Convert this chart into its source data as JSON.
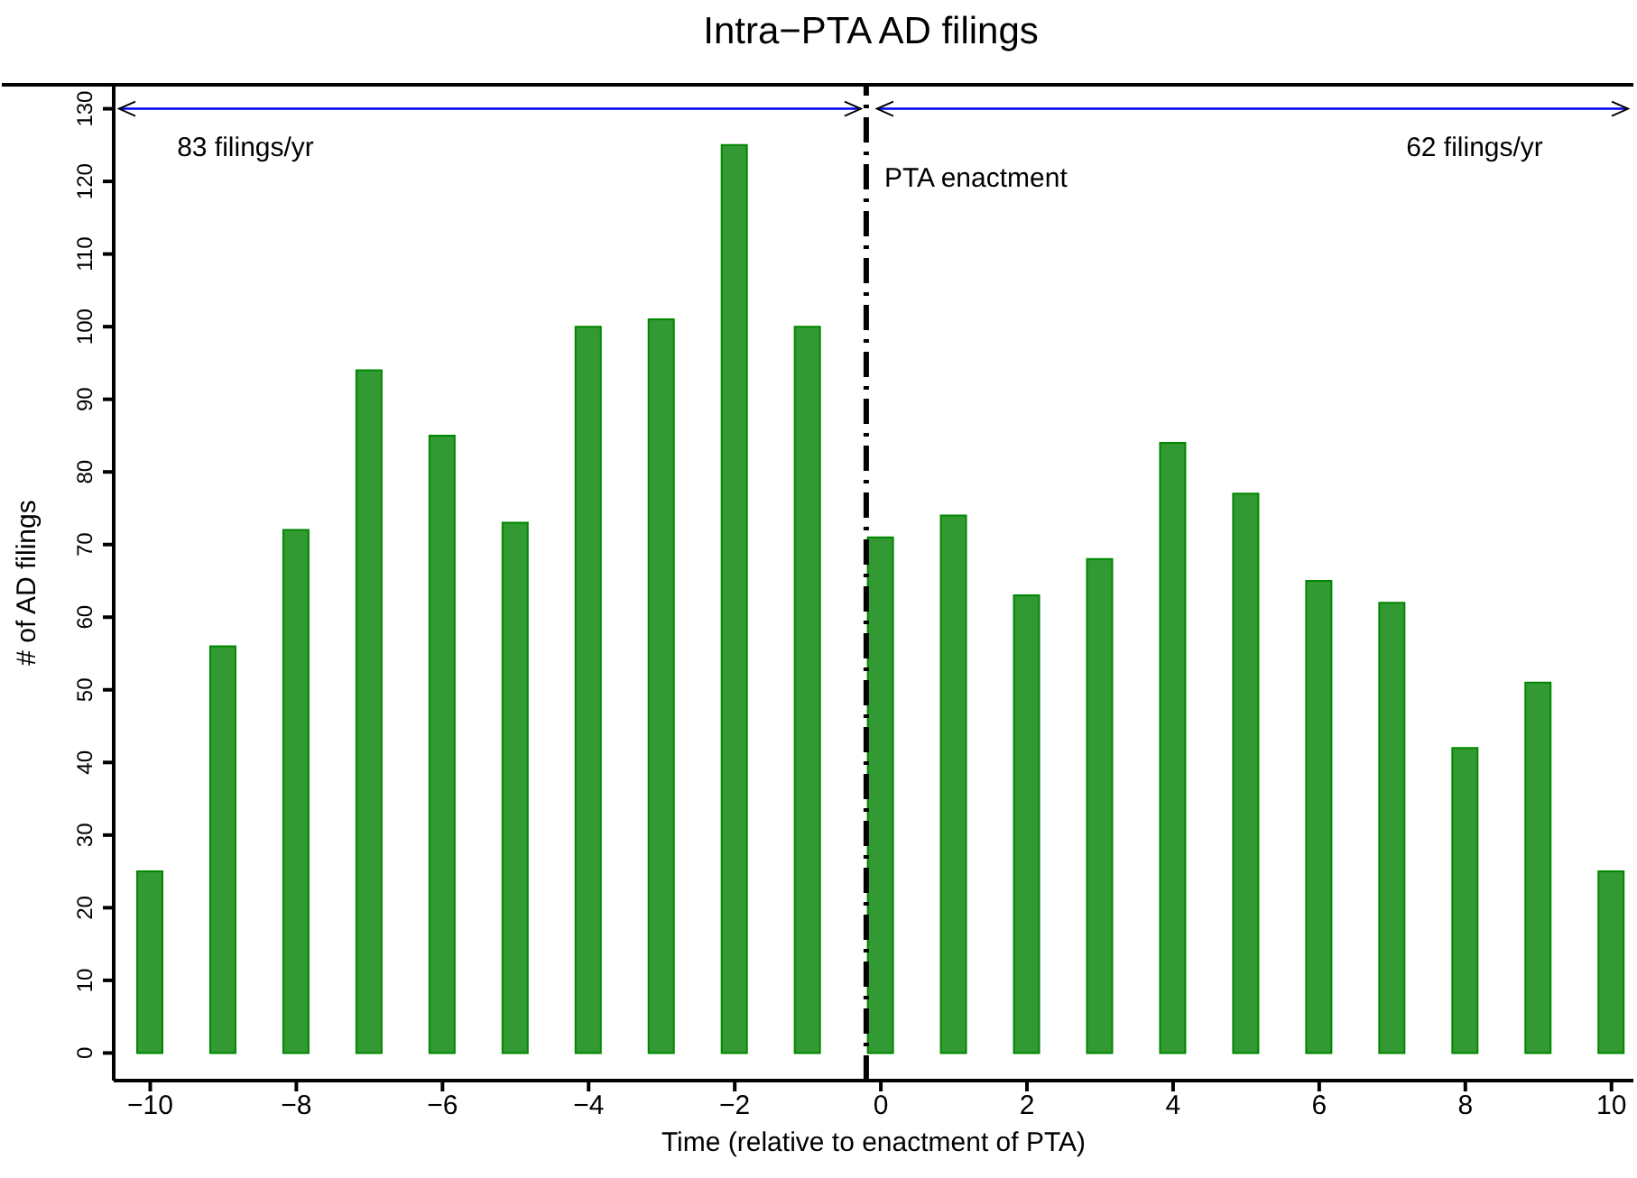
{
  "chart_data": {
    "type": "bar",
    "title": "Intra−PTA AD filings",
    "xlabel": "Time (relative to enactment of PTA)",
    "ylabel": "# of AD filings",
    "x": [
      -10,
      -9,
      -8,
      -7,
      -6,
      -5,
      -4,
      -3,
      -2,
      -1,
      0,
      1,
      2,
      3,
      4,
      5,
      6,
      7,
      8,
      9,
      10
    ],
    "series": [
      {
        "color": "#339933",
        "values": [
          25,
          56,
          72,
          94,
          85,
          73,
          100,
          101,
          125,
          100,
          71,
          74,
          63,
          68,
          84,
          77,
          65,
          62,
          42,
          51,
          25
        ]
      }
    ],
    "xlim": [
      -10.5,
      10.3
    ],
    "xticks": [
      -10,
      -8,
      -6,
      -4,
      -2,
      0,
      2,
      4,
      6,
      8,
      10
    ],
    "ylim": [
      -3.8,
      133.3
    ],
    "yticks": [
      0,
      10,
      20,
      30,
      40,
      50,
      60,
      70,
      80,
      90,
      100,
      110,
      120,
      130
    ],
    "ref_lines": [
      {
        "axis": "x",
        "value": -0.2,
        "label": "PTA enactment",
        "color": "#000000",
        "line_style": "dashed"
      }
    ],
    "annotations": [
      "83 filings/yr",
      "62 filings/yr"
    ],
    "legend": false
  }
}
